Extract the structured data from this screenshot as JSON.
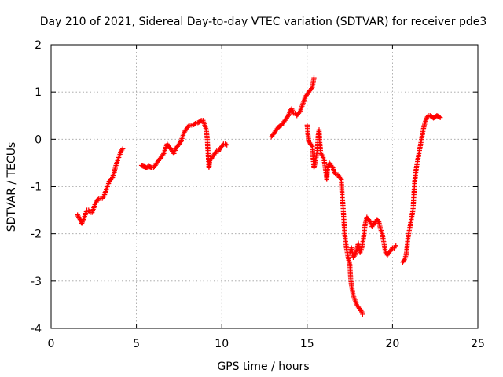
{
  "chart_data": {
    "type": "scatter",
    "title": "Day 210 of 2021, Sidereal Day-to-day VTEC variation (SDTVAR) for receiver pde3",
    "xlabel": "GPS time / hours",
    "ylabel": "SDTVAR / TECUs",
    "xlim": [
      0,
      25
    ],
    "ylim": [
      -4,
      2
    ],
    "xticks": [
      0,
      5,
      10,
      15,
      20,
      25
    ],
    "yticks": [
      -4,
      -3,
      -2,
      -1,
      0,
      1,
      2
    ],
    "grid": true,
    "marker": "+",
    "color": "#ff0000",
    "series": [
      {
        "name": "SDTVAR",
        "segments": [
          [
            [
              1.55,
              -1.6
            ],
            [
              1.7,
              -1.7
            ],
            [
              1.8,
              -1.78
            ],
            [
              1.9,
              -1.7
            ],
            [
              2.0,
              -1.6
            ],
            [
              2.1,
              -1.5
            ],
            [
              2.2,
              -1.5
            ],
            [
              2.3,
              -1.55
            ],
            [
              2.4,
              -1.55
            ],
            [
              2.5,
              -1.45
            ],
            [
              2.6,
              -1.35
            ],
            [
              2.7,
              -1.3
            ],
            [
              2.8,
              -1.25
            ],
            [
              2.9,
              -1.25
            ],
            [
              3.0,
              -1.25
            ],
            [
              3.1,
              -1.2
            ],
            [
              3.2,
              -1.1
            ],
            [
              3.3,
              -1.0
            ],
            [
              3.4,
              -0.9
            ],
            [
              3.5,
              -0.85
            ],
            [
              3.6,
              -0.8
            ],
            [
              3.7,
              -0.7
            ],
            [
              3.8,
              -0.55
            ],
            [
              3.9,
              -0.45
            ],
            [
              4.0,
              -0.35
            ],
            [
              4.1,
              -0.25
            ],
            [
              4.2,
              -0.2
            ]
          ],
          [
            [
              5.3,
              -0.55
            ],
            [
              5.4,
              -0.57
            ],
            [
              5.5,
              -0.58
            ],
            [
              5.6,
              -0.6
            ],
            [
              5.7,
              -0.57
            ],
            [
              5.8,
              -0.58
            ],
            [
              5.9,
              -0.6
            ],
            [
              6.0,
              -0.6
            ],
            [
              6.1,
              -0.55
            ],
            [
              6.2,
              -0.5
            ],
            [
              6.3,
              -0.45
            ],
            [
              6.4,
              -0.4
            ],
            [
              6.5,
              -0.35
            ],
            [
              6.6,
              -0.3
            ],
            [
              6.7,
              -0.2
            ],
            [
              6.8,
              -0.1
            ],
            [
              6.9,
              -0.15
            ],
            [
              7.0,
              -0.2
            ],
            [
              7.1,
              -0.25
            ],
            [
              7.2,
              -0.3
            ],
            [
              7.3,
              -0.2
            ],
            [
              7.4,
              -0.15
            ],
            [
              7.5,
              -0.1
            ],
            [
              7.6,
              -0.05
            ],
            [
              7.7,
              0.05
            ],
            [
              7.8,
              0.15
            ],
            [
              7.9,
              0.2
            ],
            [
              8.0,
              0.25
            ],
            [
              8.1,
              0.3
            ],
            [
              8.2,
              0.3
            ],
            [
              8.3,
              0.3
            ],
            [
              8.4,
              0.32
            ],
            [
              8.5,
              0.35
            ],
            [
              8.6,
              0.35
            ],
            [
              8.7,
              0.37
            ],
            [
              8.8,
              0.4
            ],
            [
              8.9,
              0.4
            ],
            [
              9.0,
              0.3
            ],
            [
              9.1,
              0.2
            ],
            [
              9.15,
              0.0
            ],
            [
              9.2,
              -0.3
            ],
            [
              9.25,
              -0.6
            ],
            [
              9.3,
              -0.45
            ],
            [
              9.4,
              -0.4
            ],
            [
              9.5,
              -0.35
            ],
            [
              9.6,
              -0.3
            ],
            [
              9.7,
              -0.25
            ],
            [
              9.8,
              -0.25
            ],
            [
              9.9,
              -0.2
            ],
            [
              10.0,
              -0.15
            ],
            [
              10.1,
              -0.1
            ],
            [
              10.2,
              -0.1
            ],
            [
              10.3,
              -0.12
            ]
          ],
          [
            [
              12.9,
              0.05
            ],
            [
              13.0,
              0.1
            ],
            [
              13.1,
              0.15
            ],
            [
              13.2,
              0.2
            ],
            [
              13.3,
              0.25
            ],
            [
              13.4,
              0.28
            ],
            [
              13.5,
              0.3
            ],
            [
              13.6,
              0.35
            ],
            [
              13.7,
              0.4
            ],
            [
              13.8,
              0.45
            ],
            [
              13.9,
              0.5
            ],
            [
              14.0,
              0.6
            ],
            [
              14.1,
              0.65
            ],
            [
              14.2,
              0.55
            ],
            [
              14.3,
              0.55
            ],
            [
              14.4,
              0.5
            ],
            [
              14.5,
              0.55
            ],
            [
              14.6,
              0.6
            ],
            [
              14.7,
              0.7
            ],
            [
              14.8,
              0.8
            ],
            [
              14.9,
              0.9
            ],
            [
              15.0,
              0.95
            ],
            [
              15.1,
              1.0
            ],
            [
              15.2,
              1.05
            ],
            [
              15.3,
              1.1
            ],
            [
              15.4,
              1.3
            ]
          ],
          [
            [
              15.0,
              0.3
            ],
            [
              15.05,
              0.1
            ],
            [
              15.1,
              -0.05
            ],
            [
              15.2,
              -0.1
            ],
            [
              15.3,
              -0.15
            ],
            [
              15.35,
              -0.4
            ],
            [
              15.4,
              -0.6
            ],
            [
              15.5,
              -0.45
            ],
            [
              15.6,
              -0.2
            ],
            [
              15.65,
              0.1
            ],
            [
              15.7,
              0.2
            ],
            [
              15.75,
              -0.1
            ],
            [
              15.8,
              -0.3
            ],
            [
              15.9,
              -0.35
            ],
            [
              16.0,
              -0.45
            ],
            [
              16.1,
              -0.7
            ],
            [
              16.15,
              -0.85
            ],
            [
              16.2,
              -0.6
            ],
            [
              16.3,
              -0.5
            ],
            [
              16.4,
              -0.55
            ],
            [
              16.5,
              -0.6
            ],
            [
              16.6,
              -0.7
            ],
            [
              16.7,
              -0.75
            ],
            [
              16.8,
              -0.75
            ],
            [
              16.9,
              -0.8
            ],
            [
              17.0,
              -0.85
            ],
            [
              17.05,
              -1.2
            ],
            [
              17.1,
              -1.4
            ],
            [
              17.15,
              -1.7
            ],
            [
              17.2,
              -2.0
            ],
            [
              17.3,
              -2.3
            ],
            [
              17.4,
              -2.5
            ],
            [
              17.5,
              -2.65
            ],
            [
              17.55,
              -2.95
            ],
            [
              17.6,
              -3.1
            ],
            [
              17.7,
              -3.3
            ],
            [
              17.8,
              -3.4
            ],
            [
              17.9,
              -3.5
            ],
            [
              18.0,
              -3.55
            ],
            [
              18.1,
              -3.6
            ],
            [
              18.2,
              -3.65
            ],
            [
              18.25,
              -3.7
            ]
          ],
          [
            [
              17.5,
              -2.4
            ],
            [
              17.6,
              -2.3
            ],
            [
              17.7,
              -2.5
            ],
            [
              17.8,
              -2.45
            ],
            [
              17.9,
              -2.35
            ],
            [
              18.0,
              -2.2
            ],
            [
              18.1,
              -2.4
            ],
            [
              18.2,
              -2.3
            ],
            [
              18.3,
              -2.1
            ],
            [
              18.4,
              -1.8
            ],
            [
              18.5,
              -1.65
            ],
            [
              18.6,
              -1.7
            ],
            [
              18.7,
              -1.75
            ],
            [
              18.8,
              -1.85
            ],
            [
              18.9,
              -1.8
            ],
            [
              19.0,
              -1.75
            ],
            [
              19.1,
              -1.7
            ],
            [
              19.2,
              -1.75
            ],
            [
              19.3,
              -1.9
            ],
            [
              19.4,
              -2.0
            ],
            [
              19.5,
              -2.2
            ],
            [
              19.6,
              -2.4
            ],
            [
              19.7,
              -2.45
            ],
            [
              19.8,
              -2.4
            ],
            [
              19.9,
              -2.35
            ],
            [
              20.0,
              -2.3
            ],
            [
              20.1,
              -2.3
            ],
            [
              20.2,
              -2.25
            ]
          ],
          [
            [
              20.6,
              -2.6
            ],
            [
              20.7,
              -2.55
            ],
            [
              20.8,
              -2.45
            ],
            [
              20.85,
              -2.3
            ],
            [
              20.9,
              -2.1
            ],
            [
              21.0,
              -1.9
            ],
            [
              21.1,
              -1.7
            ],
            [
              21.2,
              -1.5
            ],
            [
              21.25,
              -1.2
            ],
            [
              21.3,
              -0.9
            ],
            [
              21.4,
              -0.6
            ],
            [
              21.5,
              -0.4
            ],
            [
              21.6,
              -0.2
            ],
            [
              21.7,
              0.0
            ],
            [
              21.8,
              0.2
            ],
            [
              21.9,
              0.35
            ],
            [
              22.0,
              0.45
            ],
            [
              22.1,
              0.5
            ],
            [
              22.2,
              0.5
            ],
            [
              22.3,
              0.48
            ],
            [
              22.4,
              0.45
            ],
            [
              22.5,
              0.47
            ],
            [
              22.6,
              0.5
            ],
            [
              22.7,
              0.48
            ],
            [
              22.8,
              0.46
            ]
          ]
        ]
      }
    ]
  }
}
